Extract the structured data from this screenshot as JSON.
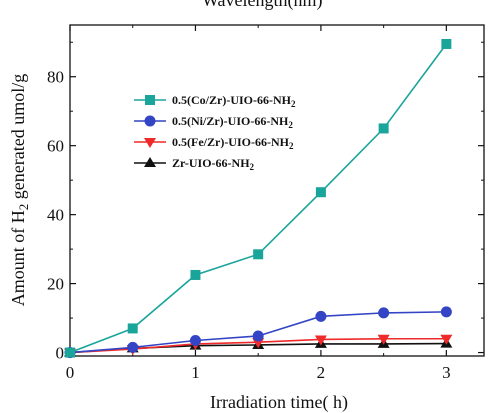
{
  "top_fragment": "Wavelength(nm)",
  "chart_data": {
    "type": "line",
    "xlabel": "Irradiation time(   h)",
    "ylabel_parts": [
      "Amount of H",
      "2",
      " generated umol/g"
    ],
    "xlim": [
      0,
      3.3
    ],
    "ylim": [
      -1,
      95
    ],
    "xticks": [
      0,
      1,
      2,
      3
    ],
    "yticks": [
      0,
      20,
      40,
      60,
      80
    ],
    "legend_position": "upper-left",
    "grid": false,
    "series": [
      {
        "name": "0.5(Co/Zr)-UIO-66-NH2",
        "label_main": "0.5(Co/Zr)-UIO-66-NH",
        "label_sub": "2",
        "color": "#1aa59b",
        "marker": "square",
        "x": [
          0,
          0.5,
          1,
          1.5,
          2,
          2.5,
          3
        ],
        "y": [
          0,
          7,
          22.5,
          28.5,
          46.5,
          65,
          89.5
        ]
      },
      {
        "name": "0.5(Ni/Zr)-UIO-66-NH2",
        "label_main": "0.5(Ni/Zr)-UIO-66-NH",
        "label_sub": "2",
        "color": "#3344c4",
        "marker": "circle",
        "x": [
          0,
          0.5,
          1,
          1.5,
          2,
          2.5,
          3
        ],
        "y": [
          0,
          1.5,
          3.5,
          4.8,
          10.5,
          11.5,
          11.8
        ]
      },
      {
        "name": "0.5(Fe/Zr)-UIO-66-NH2",
        "label_main": "0.5(Fe/Zr)-UIO-66-NH",
        "label_sub": "2",
        "color": "#ee2a2a",
        "marker": "triangle-down",
        "x": [
          0,
          0.5,
          1,
          1.5,
          2,
          2.5,
          3
        ],
        "y": [
          0,
          1,
          2.5,
          3,
          3.8,
          4,
          4
        ]
      },
      {
        "name": "Zr-UIO-66-NH2",
        "label_main": "Zr-UIO-66-NH",
        "label_sub": "2",
        "color": "#111111",
        "marker": "triangle-up",
        "x": [
          0,
          0.5,
          1,
          1.5,
          2,
          2.5,
          3
        ],
        "y": [
          0,
          1.2,
          2,
          2.2,
          2.5,
          2.5,
          2.6
        ]
      }
    ]
  }
}
